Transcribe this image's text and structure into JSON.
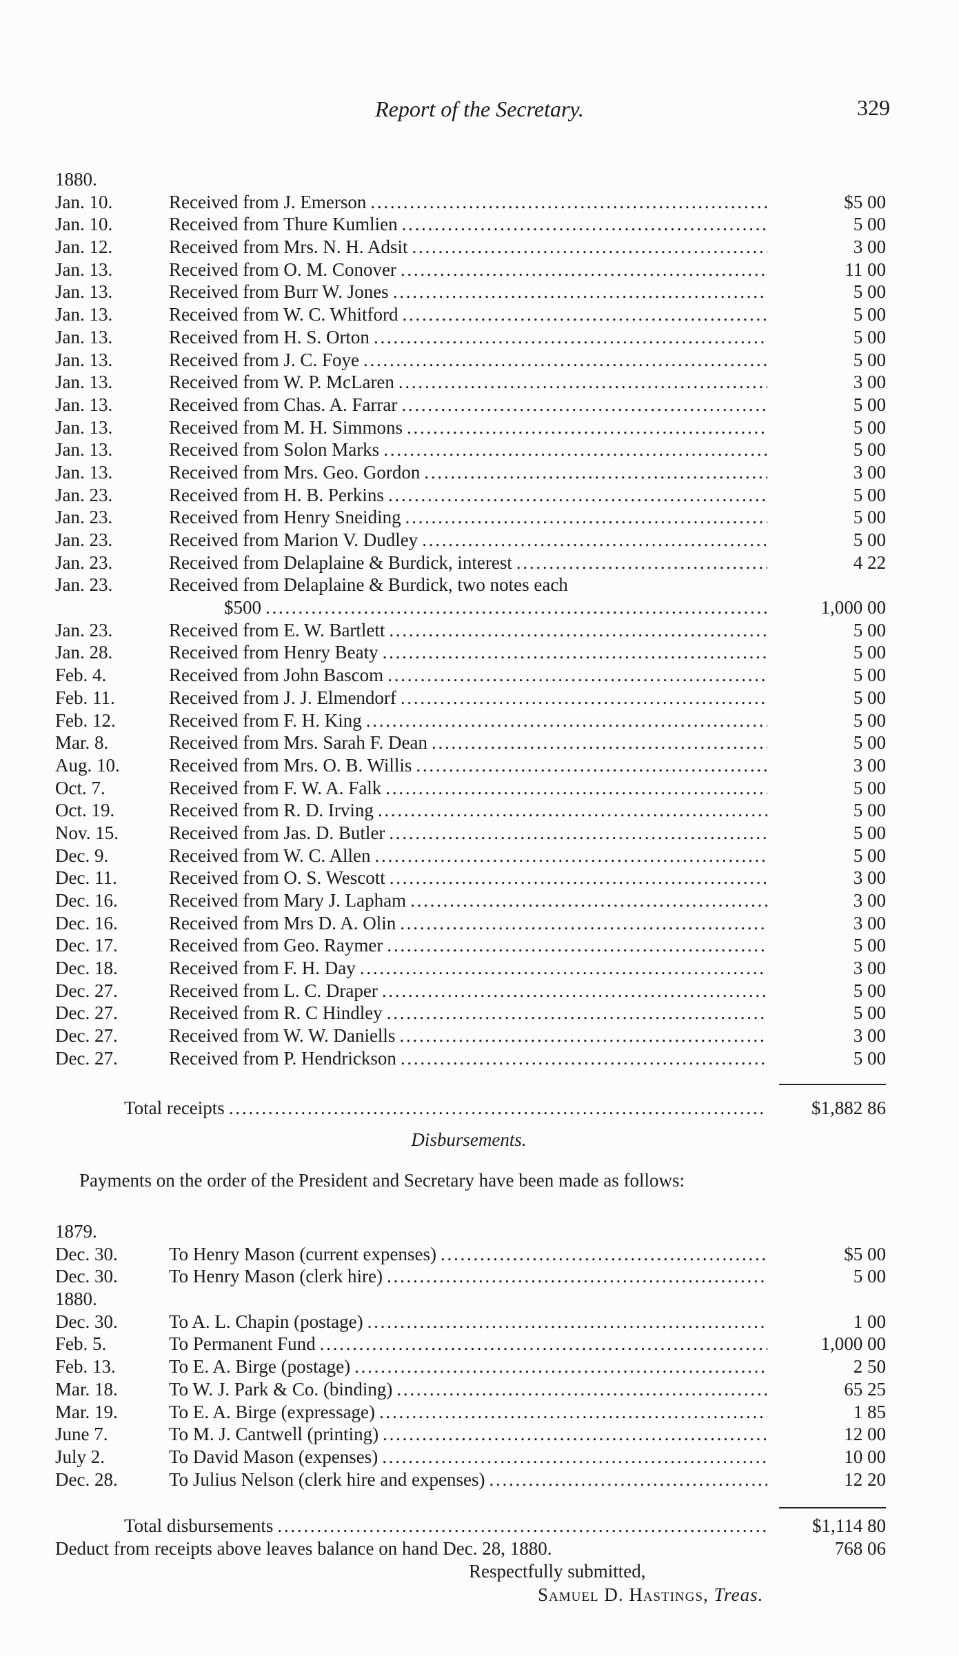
{
  "header": {
    "title": "Report of the Secretary.",
    "page_number": "329"
  },
  "receipts": {
    "year": "1880.",
    "rows": [
      {
        "date": "Jan. 10.",
        "desc": "Received from J. Emerson",
        "amount": "$5 00"
      },
      {
        "date": "Jan. 10.",
        "desc": "Received from Thure Kumlien",
        "amount": "5 00"
      },
      {
        "date": "Jan. 12.",
        "desc": "Received from Mrs. N. H. Adsit",
        "amount": "3 00"
      },
      {
        "date": "Jan. 13.",
        "desc": "Received from O. M. Conover",
        "amount": "11 00"
      },
      {
        "date": "Jan. 13.",
        "desc": "Received from Burr W. Jones",
        "amount": "5 00"
      },
      {
        "date": "Jan. 13.",
        "desc": "Received from W. C. Whitford",
        "amount": "5 00"
      },
      {
        "date": "Jan. 13.",
        "desc": "Received from H. S. Orton",
        "amount": "5 00"
      },
      {
        "date": "Jan. 13.",
        "desc": "Received from J. C. Foye",
        "amount": "5 00"
      },
      {
        "date": "Jan. 13.",
        "desc": "Received from W. P. McLaren",
        "amount": "3 00"
      },
      {
        "date": "Jan. 13.",
        "desc": "Received from Chas. A. Farrar",
        "amount": "5 00"
      },
      {
        "date": "Jan. 13.",
        "desc": "Received from M. H. Simmons",
        "amount": "5 00"
      },
      {
        "date": "Jan. 13.",
        "desc": "Received from Solon Marks",
        "amount": "5 00"
      },
      {
        "date": "Jan. 13.",
        "desc": "Received from Mrs. Geo. Gordon",
        "amount": "3 00"
      },
      {
        "date": "Jan. 23.",
        "desc": "Received from H. B. Perkins",
        "amount": "5 00"
      },
      {
        "date": "Jan. 23.",
        "desc": "Received from Henry Sneiding",
        "amount": "5 00"
      },
      {
        "date": "Jan. 23.",
        "desc": "Received from Marion V. Dudley",
        "amount": "5 00"
      },
      {
        "date": "Jan. 23.",
        "desc": "Received from Delaplaine & Burdick, interest",
        "amount": "4 22"
      },
      {
        "date": "Jan. 23.",
        "desc": "Received from Delaplaine & Burdick, two notes each",
        "continuation": "$500",
        "amount": "1,000 00"
      },
      {
        "date": "Jan. 23.",
        "desc": "Received from E. W. Bartlett",
        "amount": "5 00"
      },
      {
        "date": "Jan. 28.",
        "desc": "Received from Henry Beaty",
        "amount": "5 00"
      },
      {
        "date": "Feb. 4.",
        "desc": "Received from John Bascom",
        "amount": "5 00"
      },
      {
        "date": "Feb. 11.",
        "desc": "Received from J. J. Elmendorf",
        "amount": "5 00"
      },
      {
        "date": "Feb. 12.",
        "desc": "Received from F. H. King",
        "amount": "5 00"
      },
      {
        "date": "Mar. 8.",
        "desc": "Received from Mrs. Sarah F. Dean",
        "amount": "5 00"
      },
      {
        "date": "Aug. 10.",
        "desc": "Received from Mrs. O. B. Willis",
        "amount": "3 00"
      },
      {
        "date": "Oct. 7.",
        "desc": "Received from F. W. A. Falk",
        "amount": "5 00"
      },
      {
        "date": "Oct. 19.",
        "desc": "Received from R. D. Irving",
        "amount": "5 00"
      },
      {
        "date": "Nov. 15.",
        "desc": "Received from Jas. D. Butler",
        "amount": "5 00"
      },
      {
        "date": "Dec. 9.",
        "desc": "Received from W. C. Allen",
        "amount": "5 00"
      },
      {
        "date": "Dec. 11.",
        "desc": "Received from O. S. Wescott",
        "amount": "3 00"
      },
      {
        "date": "Dec. 16.",
        "desc": "Received from Mary J. Lapham",
        "amount": "3 00"
      },
      {
        "date": "Dec. 16.",
        "desc": "Received from Mrs D. A. Olin",
        "amount": "3 00"
      },
      {
        "date": "Dec. 17.",
        "desc": "Received from Geo. Raymer",
        "amount": "5 00"
      },
      {
        "date": "Dec. 18.",
        "desc": "Received from F. H. Day",
        "amount": "3 00"
      },
      {
        "date": "Dec. 27.",
        "desc": "Received from L. C. Draper",
        "amount": "5 00"
      },
      {
        "date": "Dec. 27.",
        "desc": "Received from R. C Hindley",
        "amount": "5 00"
      },
      {
        "date": "Dec. 27.",
        "desc": "Received from W. W. Daniells",
        "amount": "3 00"
      },
      {
        "date": "Dec. 27.",
        "desc": "Received from P. Hendrickson",
        "amount": "5 00"
      }
    ],
    "total_label": "Total receipts",
    "total_amount": "$1,882 86"
  },
  "disbursements": {
    "title": "Disbursements.",
    "intro": "Payments on the order of the President and Secretary have been made as follows:",
    "groups": [
      {
        "year": "1879.",
        "rows": [
          {
            "date": "Dec. 30.",
            "desc": "To Henry Mason (current expenses)",
            "amount": "$5 00"
          },
          {
            "date": "Dec. 30.",
            "desc": "To Henry Mason (clerk hire)",
            "amount": "5 00"
          }
        ]
      },
      {
        "year": "1880.",
        "rows": [
          {
            "date": "Dec. 30.",
            "desc": "To A. L. Chapin (postage)",
            "amount": "1 00"
          },
          {
            "date": "Feb. 5.",
            "desc": "To Permanent Fund",
            "amount": "1,000 00"
          },
          {
            "date": "Feb. 13.",
            "desc": "To E. A. Birge (postage)",
            "amount": "2 50"
          },
          {
            "date": "Mar. 18.",
            "desc": "To W. J. Park & Co. (binding)",
            "amount": "65 25"
          },
          {
            "date": "Mar. 19.",
            "desc": "To E. A. Birge (expressage)",
            "amount": "1 85"
          },
          {
            "date": "June 7.",
            "desc": "To M. J. Cantwell (printing)",
            "amount": "12 00"
          },
          {
            "date": "July 2.",
            "desc": "To David Mason (expenses)",
            "amount": "10 00"
          },
          {
            "date": "Dec. 28.",
            "desc": "To Julius Nelson (clerk hire and expenses)",
            "amount": "12 20"
          }
        ]
      }
    ],
    "total_label": "Total disbursements",
    "total_amount": "$1,114 80",
    "balance_label": "Deduct from receipts above leaves balance on hand Dec. 28, 1880.",
    "balance_amount": "768 06"
  },
  "closing": {
    "respectfully": "Respectfully submitted,",
    "name": "Samuel D. Hastings",
    "title": "Treas."
  }
}
